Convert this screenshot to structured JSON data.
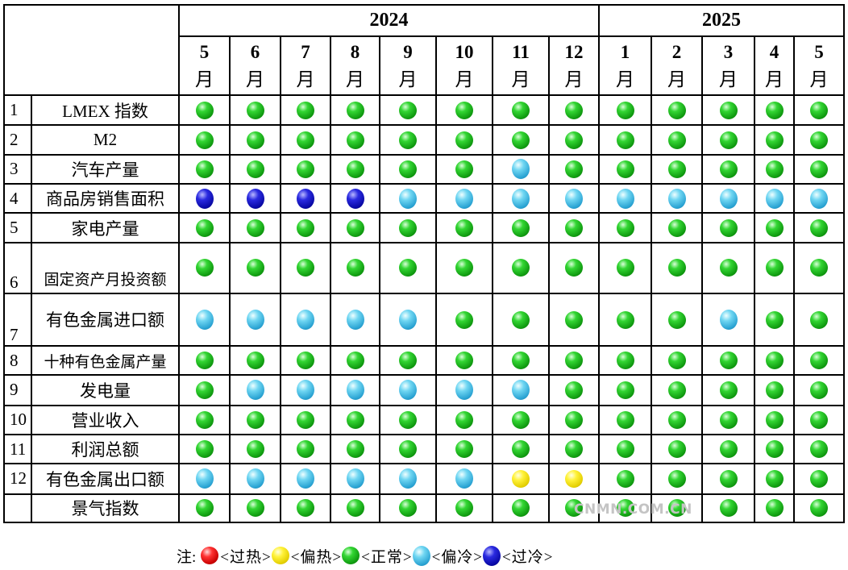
{
  "years": [
    {
      "label": "2024",
      "span": 8
    },
    {
      "label": "2025",
      "span": 5
    }
  ],
  "months": [
    {
      "num": "5",
      "unit": "月"
    },
    {
      "num": "6",
      "unit": "月"
    },
    {
      "num": "7",
      "unit": "月"
    },
    {
      "num": "8",
      "unit": "月"
    },
    {
      "num": "9",
      "unit": "月"
    },
    {
      "num": "10",
      "unit": "月"
    },
    {
      "num": "11",
      "unit": "月"
    },
    {
      "num": "12",
      "unit": "月"
    },
    {
      "num": "1",
      "unit": "月"
    },
    {
      "num": "2",
      "unit": "月"
    },
    {
      "num": "3",
      "unit": "月"
    },
    {
      "num": "4",
      "unit": "月"
    },
    {
      "num": "5",
      "unit": "月"
    }
  ],
  "status_colors": {
    "over-hot": "#e00000",
    "hot": "#f4e200",
    "normal": "#22bb22",
    "cold": "#45bde6",
    "over-cold": "#1010c0"
  },
  "rows": [
    {
      "num": "1",
      "name": "LMEX 指数",
      "status": [
        "normal",
        "normal",
        "normal",
        "normal",
        "normal",
        "normal",
        "normal",
        "normal",
        "normal",
        "normal",
        "normal",
        "normal",
        "normal"
      ]
    },
    {
      "num": "2",
      "name": "M2",
      "status": [
        "normal",
        "normal",
        "normal",
        "normal",
        "normal",
        "normal",
        "normal",
        "normal",
        "normal",
        "normal",
        "normal",
        "normal",
        "normal"
      ]
    },
    {
      "num": "3",
      "name": "汽车产量",
      "status": [
        "normal",
        "normal",
        "normal",
        "normal",
        "normal",
        "normal",
        "cold",
        "normal",
        "normal",
        "normal",
        "normal",
        "normal",
        "normal"
      ]
    },
    {
      "num": "4",
      "name": "商品房销售面积",
      "status": [
        "over-cold",
        "over-cold",
        "over-cold",
        "over-cold",
        "cold",
        "cold",
        "cold",
        "cold",
        "cold",
        "cold",
        "cold",
        "cold",
        "cold"
      ]
    },
    {
      "num": "5",
      "name": "家电产量",
      "status": [
        "normal",
        "normal",
        "normal",
        "normal",
        "normal",
        "normal",
        "normal",
        "normal",
        "normal",
        "normal",
        "normal",
        "normal",
        "normal"
      ]
    },
    {
      "num": "6",
      "name": "固定资产月投资额",
      "status": [
        "normal",
        "normal",
        "normal",
        "normal",
        "normal",
        "normal",
        "normal",
        "normal",
        "normal",
        "normal",
        "normal",
        "normal",
        "normal"
      ]
    },
    {
      "num": "7",
      "name": "有色金属进口额",
      "status": [
        "cold",
        "cold",
        "cold",
        "cold",
        "cold",
        "normal",
        "normal",
        "normal",
        "normal",
        "normal",
        "cold",
        "normal",
        "normal"
      ]
    },
    {
      "num": "8",
      "name": "十种有色金属产量",
      "status": [
        "normal",
        "normal",
        "normal",
        "normal",
        "normal",
        "normal",
        "normal",
        "normal",
        "normal",
        "normal",
        "normal",
        "normal",
        "normal"
      ]
    },
    {
      "num": "9",
      "name": "发电量",
      "status": [
        "normal",
        "cold",
        "cold",
        "cold",
        "cold",
        "cold",
        "cold",
        "normal",
        "normal",
        "normal",
        "normal",
        "normal",
        "normal"
      ]
    },
    {
      "num": "10",
      "name": "营业收入",
      "status": [
        "normal",
        "normal",
        "normal",
        "normal",
        "normal",
        "normal",
        "normal",
        "normal",
        "normal",
        "normal",
        "normal",
        "normal",
        "normal"
      ]
    },
    {
      "num": "11",
      "name": "利润总额",
      "status": [
        "normal",
        "normal",
        "normal",
        "normal",
        "normal",
        "normal",
        "normal",
        "normal",
        "normal",
        "normal",
        "normal",
        "normal",
        "normal"
      ]
    },
    {
      "num": "12",
      "name": "有色金属出口额",
      "status": [
        "cold",
        "cold",
        "cold",
        "cold",
        "cold",
        "cold",
        "hot",
        "hot",
        "normal",
        "normal",
        "normal",
        "normal",
        "normal"
      ]
    },
    {
      "num": "",
      "name": "景气指数",
      "status": [
        "normal",
        "normal",
        "normal",
        "normal",
        "normal",
        "normal",
        "normal",
        "normal",
        "normal",
        "normal",
        "normal",
        "normal",
        "normal"
      ]
    }
  ],
  "watermark": "CNMN.COM.CN",
  "legend": {
    "note": "注:",
    "items": [
      {
        "status": "over-hot",
        "label": "<过热>"
      },
      {
        "status": "hot",
        "label": "<偏热>"
      },
      {
        "status": "normal",
        "label": "<正常>"
      },
      {
        "status": "cold",
        "label": "<偏冷>"
      },
      {
        "status": "over-cold",
        "label": "<过冷>"
      }
    ]
  }
}
